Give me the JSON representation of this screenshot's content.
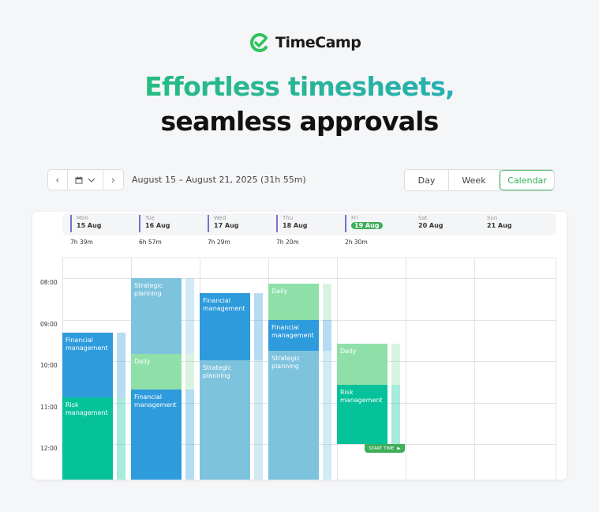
{
  "brand": {
    "name": "TimeCamp",
    "color": "#2fc45c"
  },
  "headline": {
    "line1": "Effortless timesheets,",
    "line2": "seamless approvals"
  },
  "toolbar": {
    "prev_icon": "chevron-left-icon",
    "calendar_icon": "calendar-icon",
    "dropdown_icon": "chevron-down-icon",
    "next_icon": "chevron-right-icon",
    "range": "August 15 – August 21, 2025 (31h 55m)"
  },
  "view_switch": {
    "options": [
      "Day",
      "Week",
      "Calendar"
    ],
    "active": "Calendar"
  },
  "calendar": {
    "days": [
      {
        "name": "Mon",
        "date": "15 Aug",
        "total": "7h 39m"
      },
      {
        "name": "Tue",
        "date": "16 Aug",
        "total": "6h 57m"
      },
      {
        "name": "Wed",
        "date": "17 Aug",
        "total": "7h 29m"
      },
      {
        "name": "Thu",
        "date": "18 Aug",
        "total": "7h 20m"
      },
      {
        "name": "Fri",
        "date": "19 Aug",
        "total": "2h 30m",
        "today": true
      },
      {
        "name": "Sat",
        "date": "20 Aug",
        "total": ""
      },
      {
        "name": "Sun",
        "date": "21 Aug",
        "total": ""
      }
    ],
    "hours": [
      "08:00",
      "09:00",
      "10:00",
      "11:00",
      "12:00"
    ],
    "events": [
      {
        "day": 0,
        "label": "Financial management",
        "start": "09:19",
        "end": "10:53",
        "color": "#2e9bdc"
      },
      {
        "day": 0,
        "label": "Risk management",
        "start": "10:53",
        "end": "13:00",
        "color": "#06c29b"
      },
      {
        "day": 1,
        "label": "Strategic planning",
        "start": "08:00",
        "end": "09:50",
        "color": "#7ec3de"
      },
      {
        "day": 1,
        "label": "Daily",
        "start": "09:50",
        "end": "10:41",
        "color": "#8fe0a8"
      },
      {
        "day": 1,
        "label": "Financial management",
        "start": "10:41",
        "end": "13:00",
        "color": "#2e9bdc"
      },
      {
        "day": 2,
        "label": "Financial management",
        "start": "08:22",
        "end": "09:59",
        "color": "#2e9bdc"
      },
      {
        "day": 2,
        "label": "Strategic planning",
        "start": "09:59",
        "end": "13:00",
        "color": "#7ec3de"
      },
      {
        "day": 3,
        "label": "Daily",
        "start": "08:08",
        "end": "09:00",
        "color": "#8fe0a8"
      },
      {
        "day": 3,
        "label": "Financial management",
        "start": "09:00",
        "end": "09:45",
        "color": "#2e9bdc"
      },
      {
        "day": 3,
        "label": "Strategic planning",
        "start": "09:45",
        "end": "13:00",
        "color": "#7ec3de"
      },
      {
        "day": 4,
        "label": "Daily",
        "start": "09:35",
        "end": "10:34",
        "color": "#8fe0a8"
      },
      {
        "day": 4,
        "label": "Risk management",
        "start": "10:34",
        "end": "12:00",
        "color": "#06c29b"
      }
    ],
    "start_time_label": "START TIME",
    "start_time_icon": "play-icon"
  }
}
